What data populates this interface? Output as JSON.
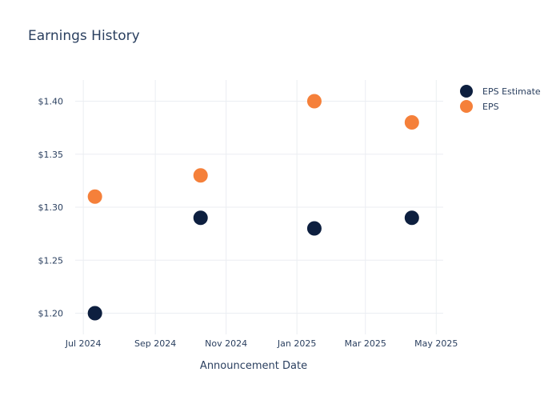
{
  "chart_data": {
    "type": "scatter",
    "title": "Earnings History",
    "xlabel": "Announcement Date",
    "ylabel": "",
    "x_axis_type": "date",
    "x_ticks": [
      {
        "date": "2024-07-01",
        "label": "Jul 2024"
      },
      {
        "date": "2024-09-01",
        "label": "Sep 2024"
      },
      {
        "date": "2024-11-01",
        "label": "Nov 2024"
      },
      {
        "date": "2025-01-01",
        "label": "Jan 2025"
      },
      {
        "date": "2025-03-01",
        "label": "Mar 2025"
      },
      {
        "date": "2025-05-01",
        "label": "May 2025"
      }
    ],
    "xlim": [
      "2024-06-24",
      "2025-05-07"
    ],
    "y_ticks": [
      {
        "value": 1.2,
        "label": "$1.20"
      },
      {
        "value": 1.25,
        "label": "$1.25"
      },
      {
        "value": 1.3,
        "label": "$1.30"
      },
      {
        "value": 1.35,
        "label": "$1.35"
      },
      {
        "value": 1.4,
        "label": "$1.40"
      }
    ],
    "ylim": [
      1.18,
      1.42
    ],
    "grid": true,
    "legend_position": "top-right",
    "series": [
      {
        "name": "EPS Estimate",
        "color": "#0d1f3f",
        "points": [
          {
            "x": "2024-07-11",
            "y": 1.2
          },
          {
            "x": "2024-10-10",
            "y": 1.29
          },
          {
            "x": "2025-01-16",
            "y": 1.28
          },
          {
            "x": "2025-04-10",
            "y": 1.29
          }
        ]
      },
      {
        "name": "EPS",
        "color": "#f5803a",
        "points": [
          {
            "x": "2024-07-11",
            "y": 1.31
          },
          {
            "x": "2024-10-10",
            "y": 1.33
          },
          {
            "x": "2025-01-16",
            "y": 1.4
          },
          {
            "x": "2025-04-10",
            "y": 1.38
          }
        ]
      }
    ]
  }
}
